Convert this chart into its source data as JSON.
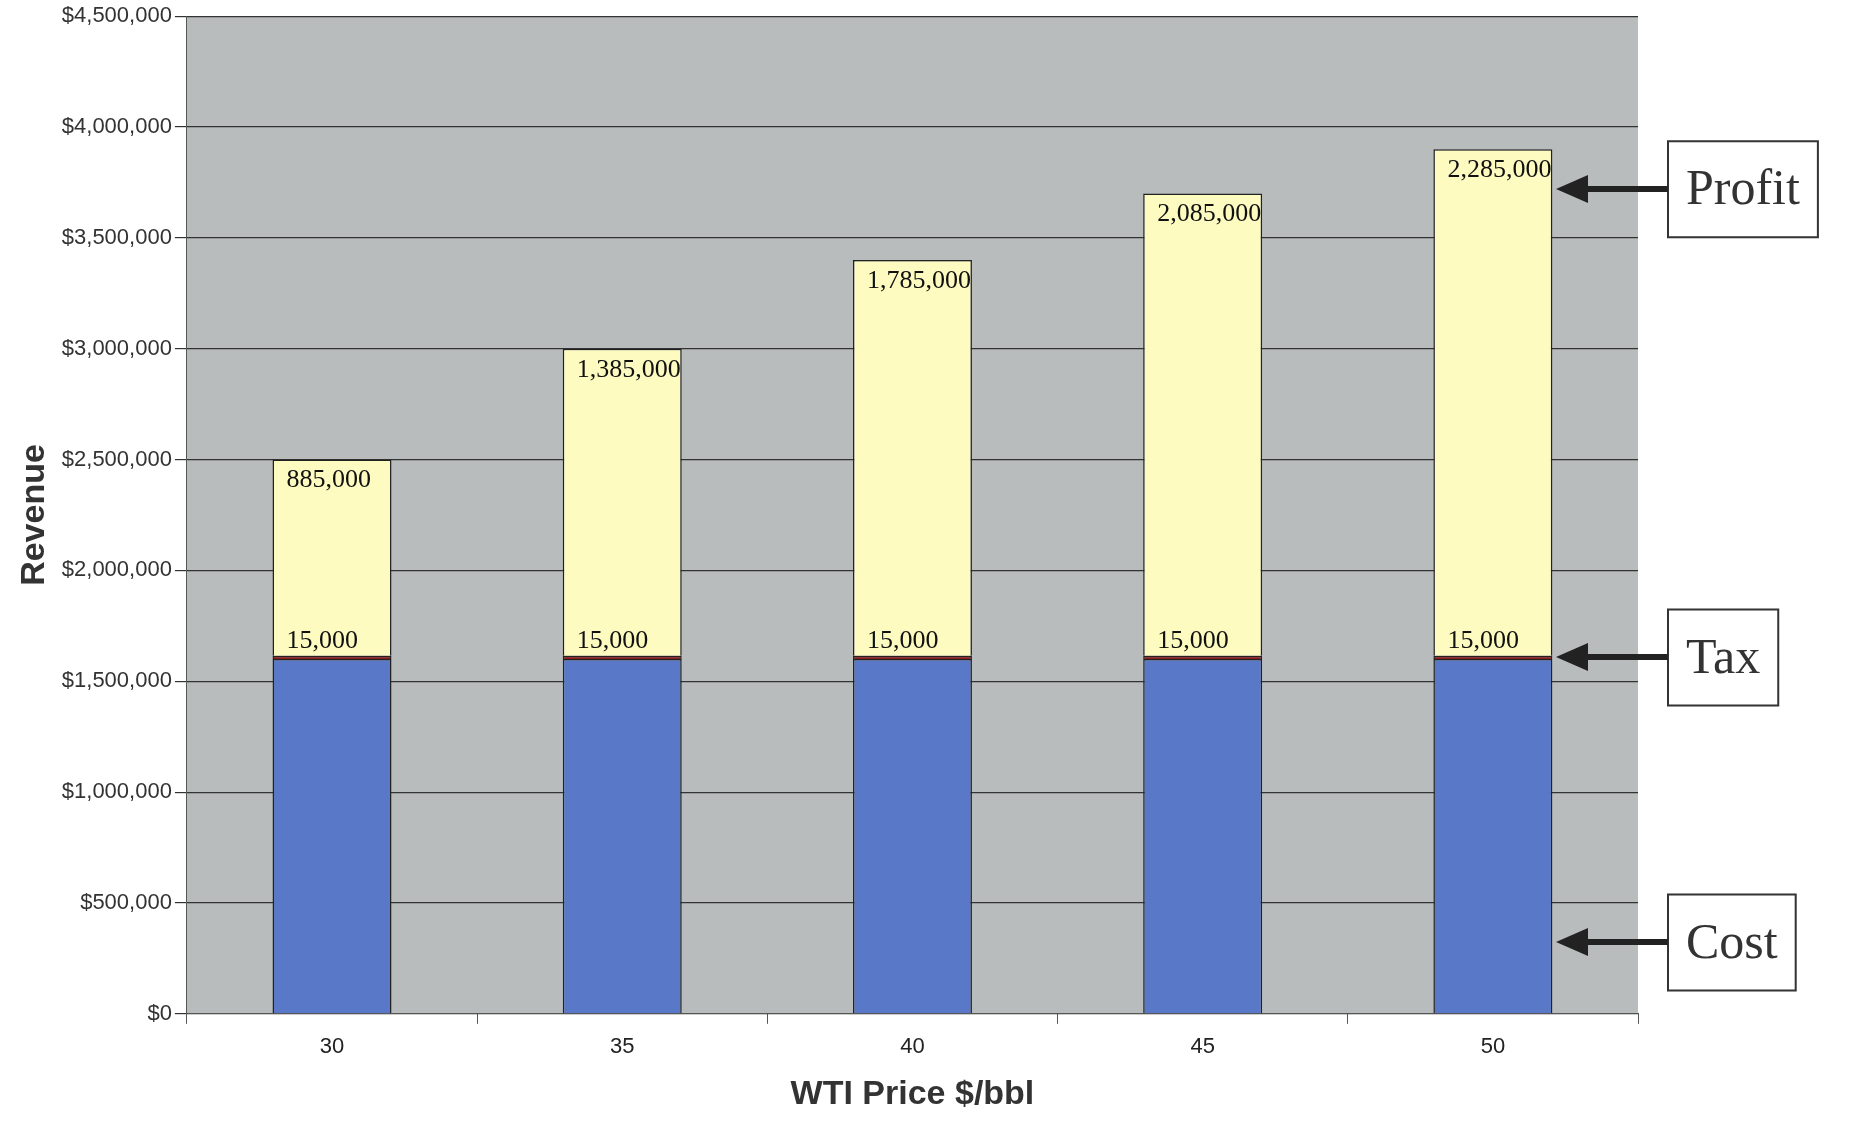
{
  "chart_data": {
    "type": "bar",
    "stacked": true,
    "xlabel": "WTI Price $/bbl",
    "ylabel": "Revenue",
    "categories": [
      "30",
      "35",
      "40",
      "45",
      "50"
    ],
    "series": [
      {
        "name": "Cost",
        "color": "#5a78c8",
        "values": [
          1600000,
          1600000,
          1600000,
          1600000,
          1600000
        ]
      },
      {
        "name": "Tax",
        "color": "#8b1a1a",
        "values": [
          15000,
          15000,
          15000,
          15000,
          15000
        ],
        "value_labels": [
          "15,000",
          "15,000",
          "15,000",
          "15,000",
          "15,000"
        ]
      },
      {
        "name": "Profit",
        "color": "#fdfbc0",
        "values": [
          885000,
          1385000,
          1785000,
          2085000,
          2285000
        ],
        "value_labels": [
          "885,000",
          "1,385,000",
          "1,785,000",
          "2,085,000",
          "2,285,000"
        ]
      }
    ],
    "ylim": [
      0,
      4500000
    ],
    "yticks": [
      {
        "value": 0,
        "label": "$0"
      },
      {
        "value": 500000,
        "label": "$500,000"
      },
      {
        "value": 1000000,
        "label": "$1,000,000"
      },
      {
        "value": 1500000,
        "label": "$1,500,000"
      },
      {
        "value": 2000000,
        "label": "$2,000,000"
      },
      {
        "value": 2500000,
        "label": "$2,500,000"
      },
      {
        "value": 3000000,
        "label": "$3,000,000"
      },
      {
        "value": 3500000,
        "label": "$3,500,000"
      },
      {
        "value": 4000000,
        "label": "$4,000,000"
      },
      {
        "value": 4500000,
        "label": "$4,500,000"
      }
    ],
    "grid": "y",
    "legend": false
  }
}
